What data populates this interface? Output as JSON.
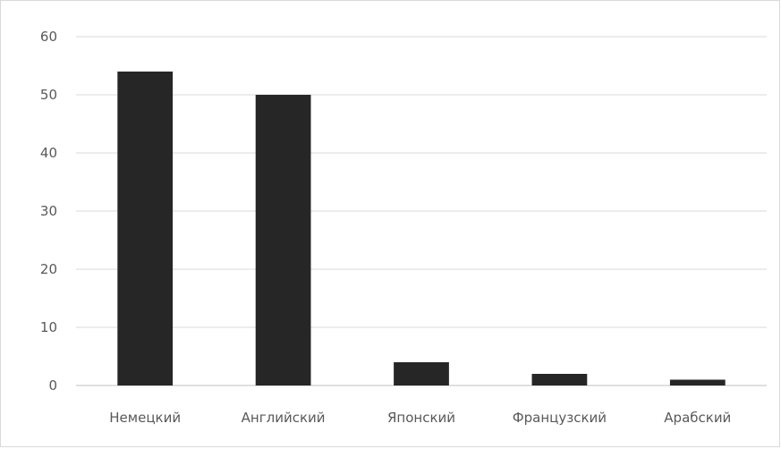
{
  "chart_data": {
    "type": "bar",
    "categories": [
      "Немецкий",
      "Английский",
      "Японский",
      "Французский",
      "Арабский"
    ],
    "values": [
      54,
      50,
      4,
      2,
      1
    ],
    "yticks": [
      0,
      10,
      20,
      30,
      40,
      50,
      60
    ],
    "ylim": [
      0,
      60
    ],
    "grid": true,
    "bar_color": "#262626"
  }
}
